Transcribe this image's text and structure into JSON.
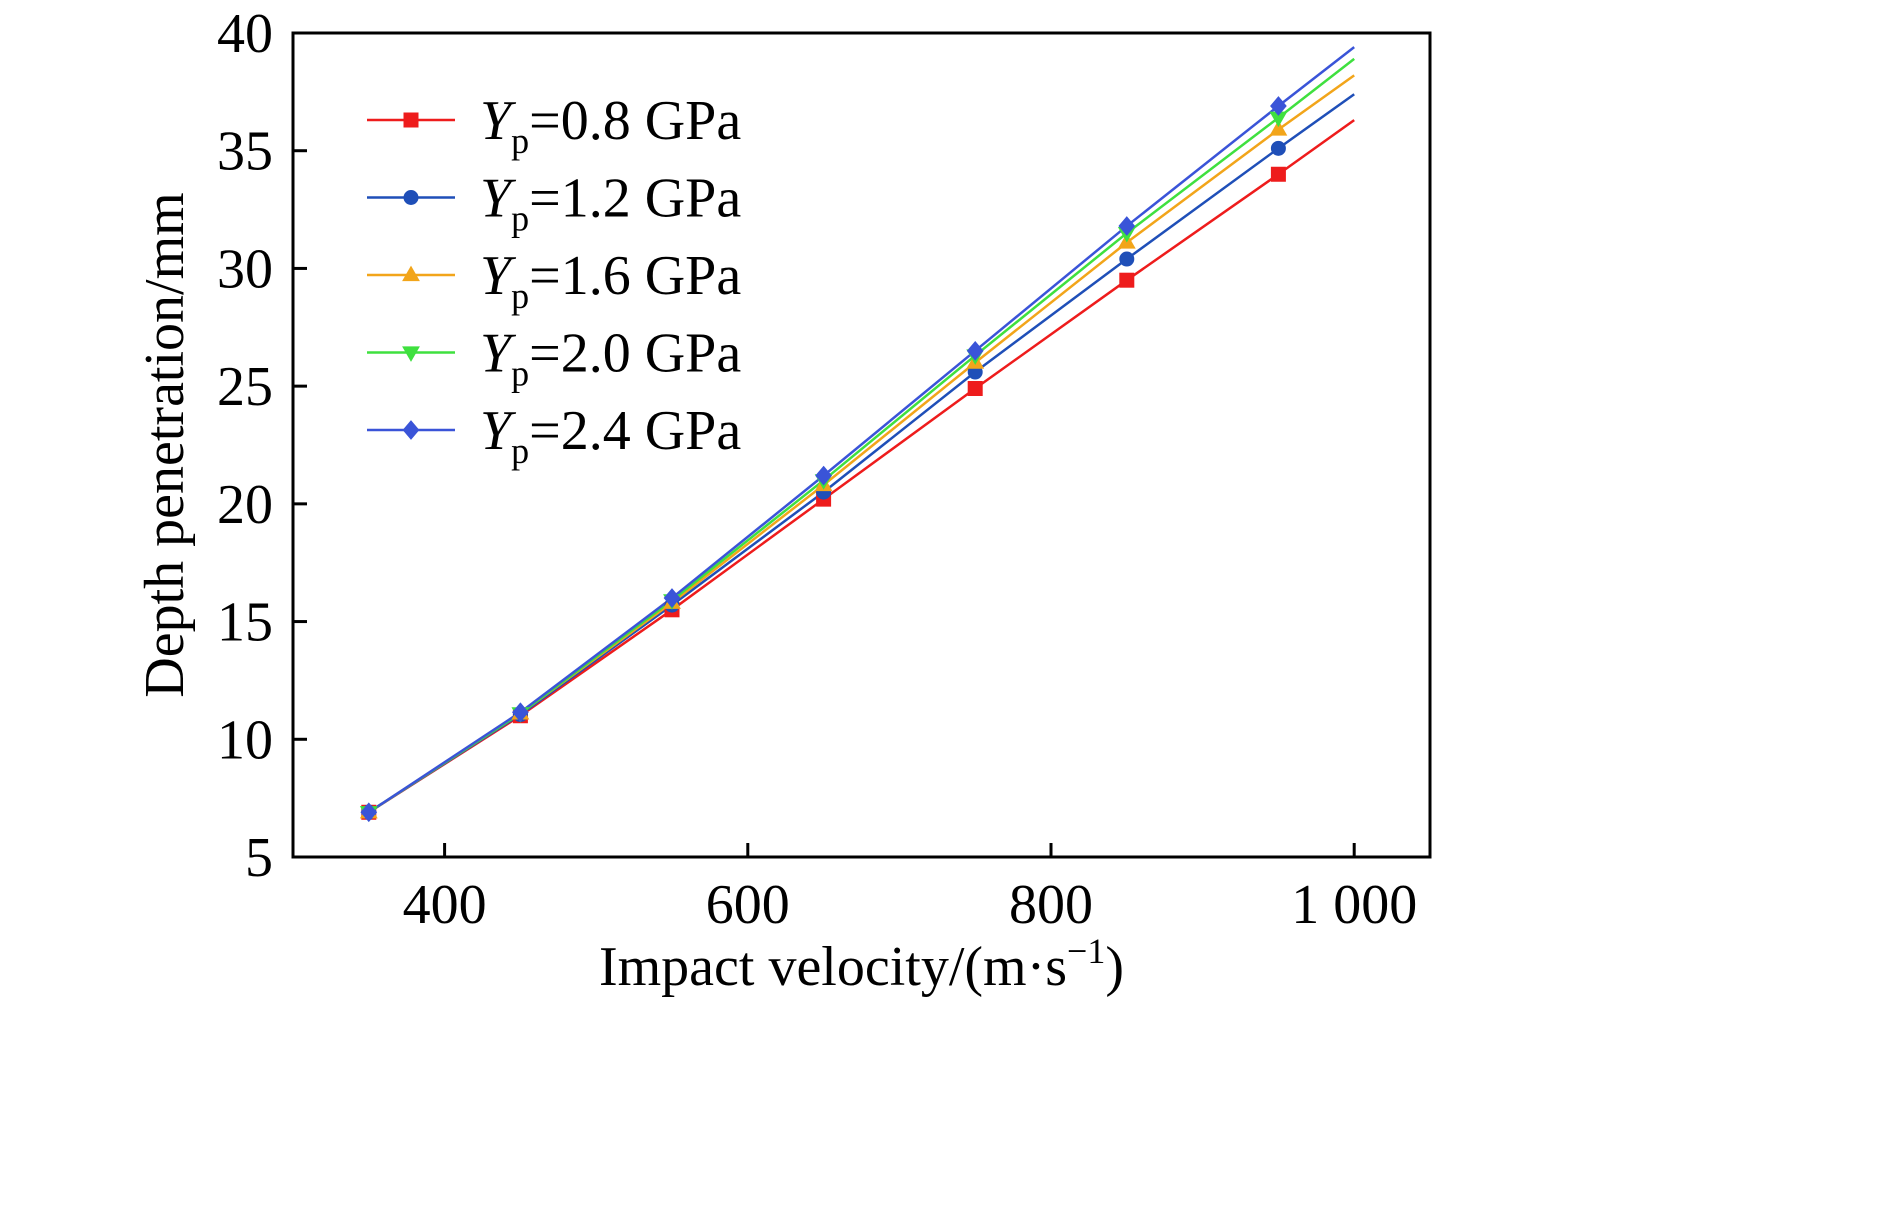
{
  "chart_data": {
    "type": "line",
    "xlabel": "Impact velocity/(m·s",
    "xlabel_sup": "−1",
    "xlabel_close": ")",
    "ylabel": "Depth penetration/mm",
    "xlim": [
      300,
      1050
    ],
    "ylim": [
      5,
      40
    ],
    "xticks": [
      400,
      600,
      800,
      1000
    ],
    "xtick_labels": [
      "400",
      "600",
      "800",
      "1 000"
    ],
    "yticks": [
      5,
      10,
      15,
      20,
      25,
      30,
      35,
      40
    ],
    "ytick_labels": [
      "5",
      "10",
      "15",
      "20",
      "25",
      "30",
      "35",
      "40"
    ],
    "grid": false,
    "legend_position": "top-left",
    "x": [
      350,
      450,
      550,
      650,
      750,
      850,
      950
    ],
    "series": [
      {
        "name": "0.8 GPa",
        "legend_var": "Y",
        "legend_sub": "p",
        "legend_eq": "=0.8 GPa",
        "color": "#ee1c1c",
        "marker": "square",
        "values": [
          6.9,
          11.0,
          15.5,
          20.2,
          24.9,
          29.5,
          34.0
        ],
        "line_end": 36.3
      },
      {
        "name": "1.2 GPa",
        "legend_var": "Y",
        "legend_sub": "p",
        "legend_eq": "=1.2 GPa",
        "color": "#1f4fb8",
        "marker": "circle",
        "values": [
          6.9,
          11.05,
          15.7,
          20.5,
          25.6,
          30.4,
          35.1
        ],
        "line_end": 37.4
      },
      {
        "name": "1.6 GPa",
        "legend_var": "Y",
        "legend_sub": "p",
        "legend_eq": "=1.6 GPa",
        "color": "#f2a51a",
        "marker": "triangle-up",
        "values": [
          6.9,
          11.1,
          15.8,
          20.8,
          26.0,
          31.1,
          35.9
        ],
        "line_end": 38.2
      },
      {
        "name": "2.0 GPa",
        "legend_var": "Y",
        "legend_sub": "p",
        "legend_eq": "=2.0 GPa",
        "color": "#3fe03f",
        "marker": "triangle-down",
        "values": [
          6.9,
          11.1,
          15.9,
          21.0,
          26.3,
          31.5,
          36.4
        ],
        "line_end": 38.9
      },
      {
        "name": "2.4 GPa",
        "legend_var": "Y",
        "legend_sub": "p",
        "legend_eq": "=2.4 GPa",
        "color": "#3a54d8",
        "marker": "diamond",
        "values": [
          6.9,
          11.15,
          16.0,
          21.2,
          26.5,
          31.8,
          36.9
        ],
        "line_end": 39.4
      }
    ],
    "line_end_x": 1000
  }
}
